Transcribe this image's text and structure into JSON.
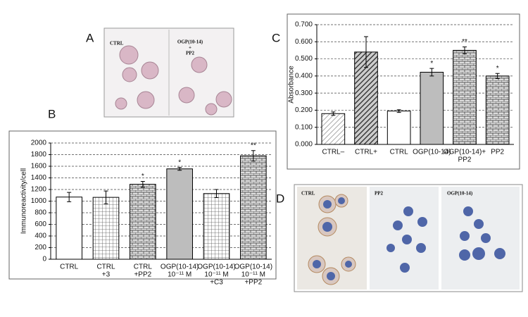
{
  "figure": {
    "panels": [
      "A",
      "B",
      "C",
      "D"
    ],
    "a_labels": [
      "CTRL",
      "OGP(10-14)",
      "+",
      "PP2"
    ],
    "d_labels": [
      "CTRL",
      "PP2",
      "OGP(10-14)"
    ]
  },
  "chart_data": [
    {
      "type": "bar",
      "y_label": "Immunoreactivity/cell",
      "categories": [
        [
          "CTRL"
        ],
        [
          "CTRL",
          "+3"
        ],
        [
          "CTRL",
          "+PP2"
        ],
        [
          "OGP(10-14)",
          "10⁻¹¹ M"
        ],
        [
          "OGP(10-14)",
          "10⁻¹¹ M",
          "+C3"
        ],
        [
          "OGP(10-14)",
          "10⁻¹¹ M",
          "+PP2"
        ]
      ],
      "values": [
        1070,
        1065,
        1290,
        1555,
        1130,
        1780
      ],
      "errors": [
        80,
        110,
        50,
        25,
        70,
        90
      ],
      "annotations": [
        null,
        null,
        "*",
        "*",
        null,
        "**"
      ],
      "patterns": [
        "white",
        "grid",
        "brick",
        "gray",
        "grid",
        "brick"
      ],
      "ylim": [
        0,
        2000
      ],
      "yticks": [
        0,
        200,
        400,
        600,
        800,
        1000,
        1200,
        1400,
        1600,
        1800,
        2000
      ],
      "grid": true
    },
    {
      "type": "bar",
      "y_label": "Absorbance",
      "categories": [
        [
          "CTRL–"
        ],
        [
          "CTRL+"
        ],
        [
          "CTRL"
        ],
        [
          "OGP(10-14)"
        ],
        [
          "OGP(10-14)+",
          "PP2"
        ],
        [
          "PP2"
        ]
      ],
      "values": [
        0.18,
        0.54,
        0.195,
        0.422,
        0.55,
        0.4
      ],
      "errors": [
        0.01,
        0.09,
        0.008,
        0.022,
        0.02,
        0.015
      ],
      "annotations": [
        null,
        null,
        null,
        "*",
        "**",
        "*"
      ],
      "patterns": [
        "diag-light",
        "diag-dark",
        "white",
        "gray",
        "brick",
        "brick"
      ],
      "ylim": [
        0,
        0.7
      ],
      "yticks": [
        {
          "value": 0,
          "label": "0.000"
        },
        {
          "value": 0.1,
          "label": "0.100"
        },
        {
          "value": 0.2,
          "label": "0.200"
        },
        {
          "value": 0.3,
          "label": "0.300"
        },
        {
          "value": 0.4,
          "label": "0.400"
        },
        {
          "value": 0.5,
          "label": "0.500"
        },
        {
          "value": 0.6,
          "label": "0.600"
        },
        {
          "value": 0.7,
          "label": "0.700"
        }
      ],
      "grid": true
    }
  ]
}
